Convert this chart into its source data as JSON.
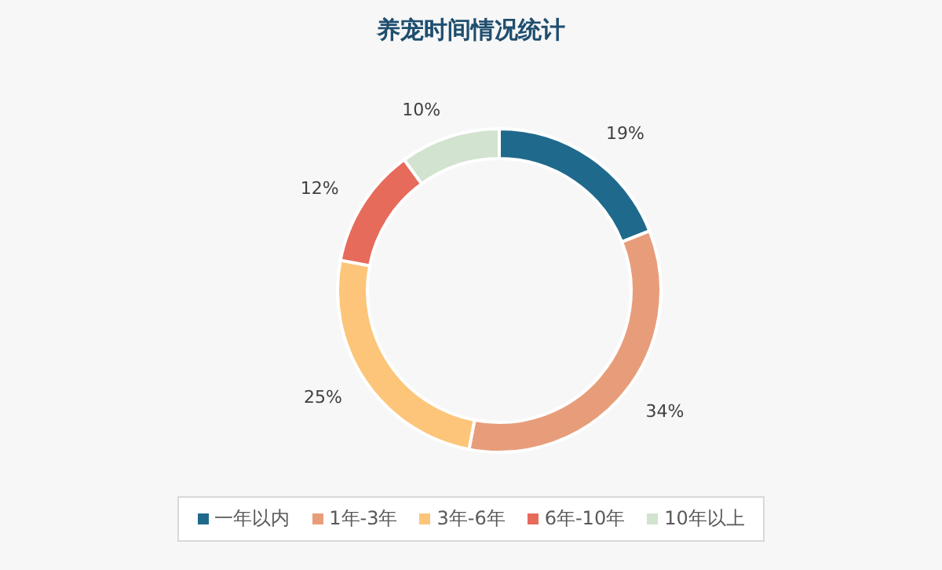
{
  "chart_data": {
    "type": "donut",
    "title": "养宠时间情况统计",
    "categories": [
      "一年以内",
      "1年-3年",
      "3年-6年",
      "6年-10年",
      "10年以上"
    ],
    "values": [
      19,
      34,
      25,
      12,
      10
    ],
    "value_labels": [
      "19%",
      "34%",
      "25%",
      "12%",
      "10%"
    ],
    "colors": [
      "#1f6a8c",
      "#e89d7a",
      "#fcc579",
      "#e66b5b",
      "#d2e3cf"
    ],
    "legend": "bottom"
  }
}
